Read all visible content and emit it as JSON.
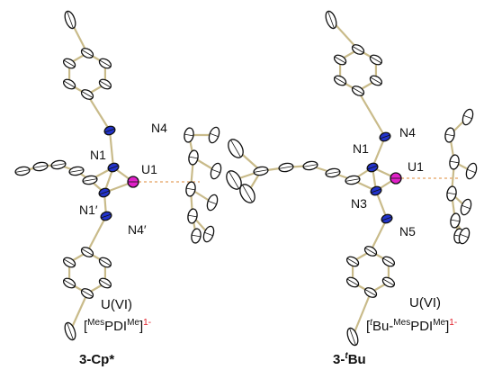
{
  "left": {
    "labels": [
      "N4",
      "N1",
      "U1",
      "N1′",
      "N4′"
    ],
    "oxidation_state": "U(VI)",
    "ligand": {
      "open": "[",
      "pre": "Mes",
      "core": "PDI",
      "post": "Me",
      "close": "]",
      "charge": "1-"
    },
    "name": "3-Cp*"
  },
  "right": {
    "labels": [
      "N4",
      "N1",
      "U1",
      "N3",
      "N5"
    ],
    "oxidation_state": "U(VI)",
    "ligand": {
      "open": "[",
      "tag": "t",
      "tag_rest": "Bu-",
      "pre": "Mes",
      "core": "PDI",
      "post": "Me",
      "close": "]",
      "charge": "1-"
    },
    "name": {
      "start": "3-",
      "tag": "t",
      "rest": "Bu"
    }
  }
}
